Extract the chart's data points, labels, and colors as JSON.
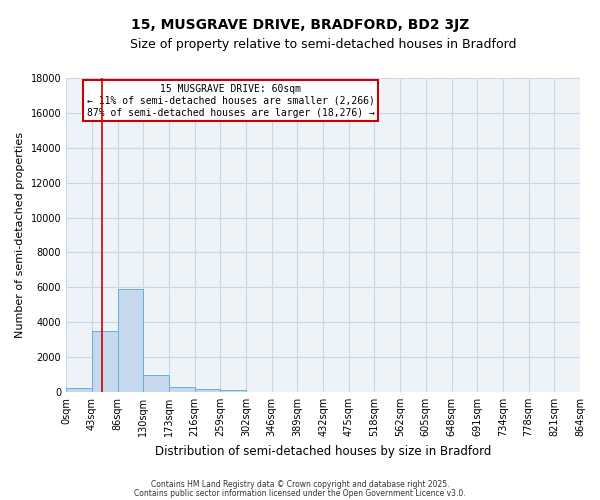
{
  "title": "15, MUSGRAVE DRIVE, BRADFORD, BD2 3JZ",
  "subtitle": "Size of property relative to semi-detached houses in Bradford",
  "xlabel": "Distribution of semi-detached houses by size in Bradford",
  "ylabel": "Number of semi-detached properties",
  "bar_values": [
    200,
    3500,
    5900,
    950,
    300,
    150,
    100,
    0,
    0,
    0,
    0,
    0,
    0,
    0,
    0,
    0,
    0,
    0,
    0,
    0
  ],
  "bin_labels": [
    "0sqm",
    "43sqm",
    "86sqm",
    "130sqm",
    "173sqm",
    "216sqm",
    "259sqm",
    "302sqm",
    "346sqm",
    "389sqm",
    "432sqm",
    "475sqm",
    "518sqm",
    "562sqm",
    "605sqm",
    "648sqm",
    "691sqm",
    "734sqm",
    "778sqm",
    "821sqm",
    "864sqm"
  ],
  "bar_color": "#c5d8ee",
  "bar_edge_color": "#6aaed6",
  "grid_color": "#c8d8e8",
  "background_color": "#eef3f8",
  "annotation_box_color": "#ffffff",
  "annotation_border_color": "#cc0000",
  "red_line_color": "#cc0000",
  "property_size": "60sqm",
  "property_name": "15 MUSGRAVE DRIVE",
  "pct_smaller": 11,
  "count_smaller": 2266,
  "pct_larger": 87,
  "count_larger": 18276,
  "ylim": [
    0,
    18000
  ],
  "yticks": [
    0,
    2000,
    4000,
    6000,
    8000,
    10000,
    12000,
    14000,
    16000,
    18000
  ],
  "footer_line1": "Contains HM Land Registry data © Crown copyright and database right 2025.",
  "footer_line2": "Contains public sector information licensed under the Open Government Licence v3.0.",
  "title_fontsize": 10,
  "subtitle_fontsize": 9,
  "tick_fontsize": 7,
  "ylabel_fontsize": 8,
  "xlabel_fontsize": 8.5,
  "footer_fontsize": 5.5
}
